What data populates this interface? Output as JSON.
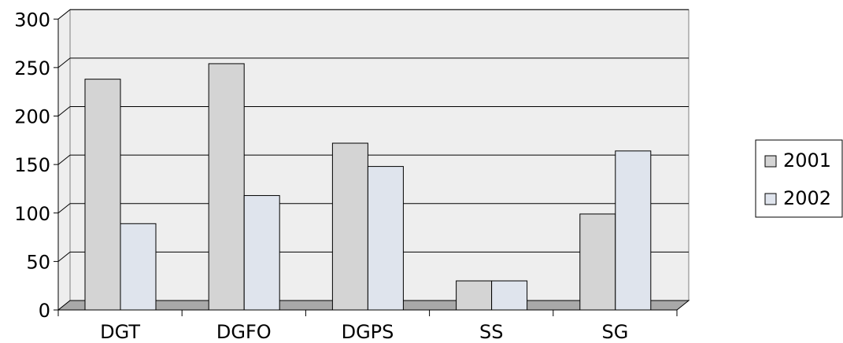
{
  "chart_data": {
    "type": "bar",
    "categories": [
      "DGT",
      "DGFO",
      "DGPS",
      "SS",
      "SG"
    ],
    "series": [
      {
        "name": "2001",
        "values": [
          238,
          254,
          172,
          30,
          99
        ]
      },
      {
        "name": "2002",
        "values": [
          89,
          118,
          148,
          30,
          164
        ]
      }
    ],
    "y_ticks": [
      "0",
      "50",
      "100",
      "150",
      "200",
      "250",
      "300"
    ],
    "ylim": [
      0,
      300
    ],
    "title": "",
    "xlabel": "",
    "ylabel": "",
    "grid": true,
    "legend_position": "right",
    "colors": {
      "series_2001": "#d4d4d4",
      "series_2002": "#dfe4ed",
      "plot_back": "#eeeeee",
      "floor": "#a9a9a9",
      "gridline": "#000000"
    }
  }
}
